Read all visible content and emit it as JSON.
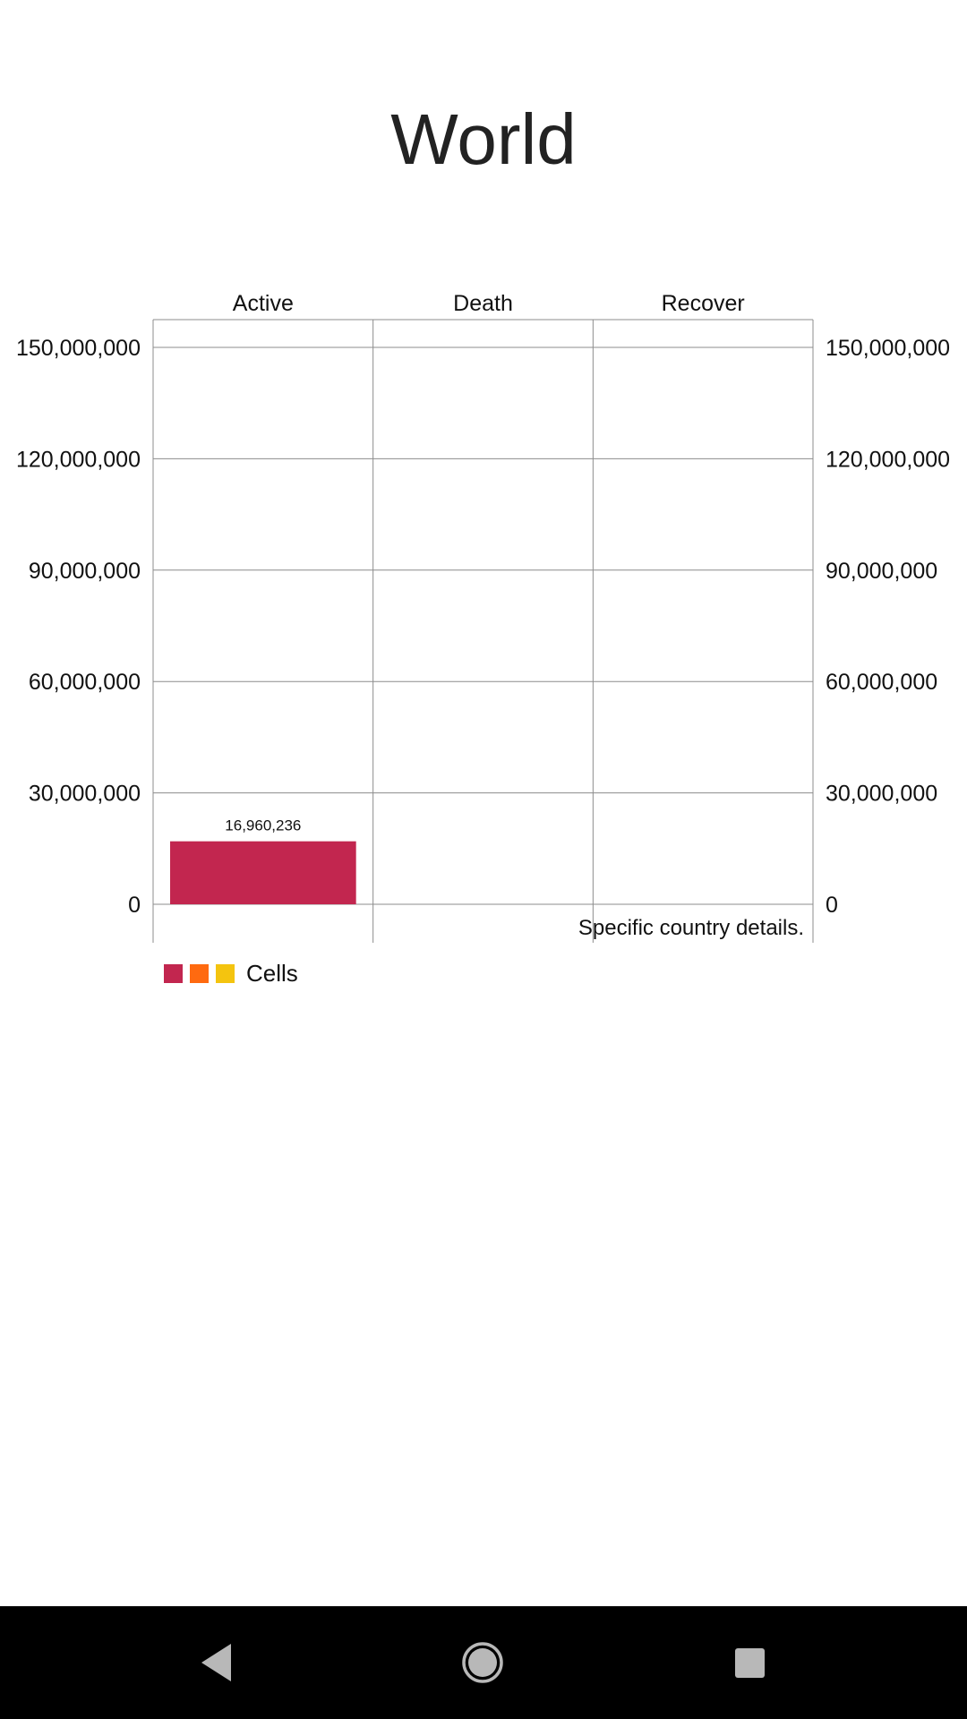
{
  "page": {
    "title": "World"
  },
  "chart_data": {
    "type": "bar",
    "categories": [
      "Active",
      "Death",
      "Recover"
    ],
    "values": [
      16960236,
      0,
      0
    ],
    "value_labels": [
      "16,960,236",
      "",
      ""
    ],
    "ylim": [
      0,
      150000000
    ],
    "yticks": [
      0,
      30000000,
      60000000,
      90000000,
      120000000,
      150000000
    ],
    "ytick_labels": [
      "0",
      "30,000,000",
      "60,000,000",
      "90,000,000",
      "120,000,000",
      "150,000,000"
    ],
    "secondary_axis": true,
    "grid": true,
    "annotation": "Specific country details.",
    "legend": {
      "label": "Cells",
      "placement": "bottom-left",
      "colors": [
        "#c2264f",
        "#ff6a10",
        "#f4c40f"
      ]
    },
    "bar_color": "#c2264f"
  },
  "navbar": {
    "back_icon": "back-triangle-icon",
    "home_icon": "home-circle-icon",
    "recents_icon": "recents-square-icon"
  }
}
